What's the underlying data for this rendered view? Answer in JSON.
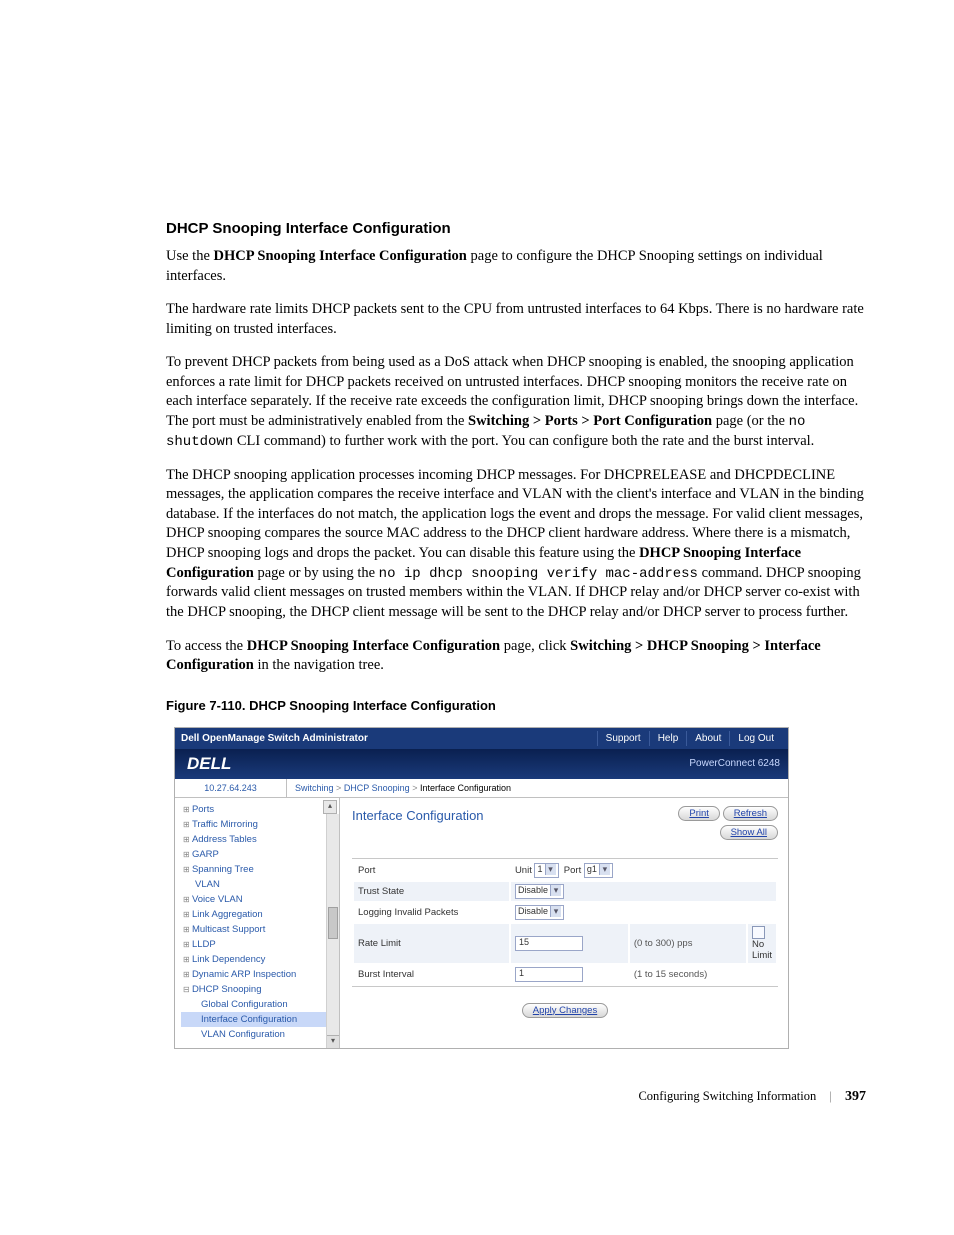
{
  "doc": {
    "heading": "DHCP Snooping Interface Configuration",
    "p1_a": "Use the ",
    "p1_b": "DHCP Snooping Interface Configuration",
    "p1_c": " page to configure the DHCP Snooping settings on individual interfaces.",
    "p2": "The hardware rate limits DHCP packets sent to the CPU from untrusted interfaces to 64 Kbps. There is no hardware rate limiting on trusted interfaces.",
    "p3_a": "To prevent DHCP packets from being used as a DoS attack when DHCP snooping is enabled, the snooping application enforces a rate limit for DHCP packets received on untrusted interfaces. DHCP snooping monitors the receive rate on each interface separately. If the receive rate exceeds the configuration limit, DHCP snooping brings down the interface. The port must be administratively enabled from the ",
    "p3_b": "Switching > Ports > Port Configuration",
    "p3_c": " page (or the ",
    "p3_cmd": "no shutdown",
    "p3_d": " CLI command) to further work with the port. You can configure both the rate and the burst interval.",
    "p4_a": "The DHCP snooping application processes incoming DHCP messages. For DHCPRELEASE and DHCPDECLINE messages, the application compares the receive interface and VLAN with the client's interface and VLAN in the binding database. If the interfaces do not match, the application logs the event and drops the message. For valid client messages, DHCP snooping compares the source MAC address to the DHCP client hardware address. Where there is a mismatch, DHCP snooping logs and drops the packet. You can disable this feature using the ",
    "p4_b": "DHCP Snooping Interface Configuration",
    "p4_c": " page or by using the ",
    "p4_cmd": "no ip dhcp snooping verify mac-address",
    "p4_d": " command. DHCP snooping forwards valid client messages on trusted members within the VLAN. If DHCP relay and/or DHCP server co-exist with the DHCP snooping, the DHCP client message will be sent to the DHCP relay and/or DHCP server to process further.",
    "p5_a": "To access the ",
    "p5_b": "DHCP Snooping Interface Configuration",
    "p5_c": " page, click ",
    "p5_d": "Switching > DHCP Snooping > Interface Configuration",
    "p5_e": " in the navigation tree.",
    "figcap": "Figure 7-110.    DHCP Snooping Interface Configuration",
    "footer_section": "Configuring Switching Information",
    "footer_pageno": "397"
  },
  "ss": {
    "topbar_title": "Dell OpenManage Switch Administrator",
    "topbar_links": [
      "Support",
      "Help",
      "About",
      "Log Out"
    ],
    "logo": "DELL",
    "product": "PowerConnect 6248",
    "ip": "10.27.64.243",
    "crumbs": [
      "Switching",
      "DHCP Snooping",
      "Interface Configuration"
    ],
    "nav": [
      {
        "label": "Ports",
        "cls": "lvl1"
      },
      {
        "label": "Traffic Mirroring",
        "cls": "lvl1"
      },
      {
        "label": "Address Tables",
        "cls": "lvl1"
      },
      {
        "label": "GARP",
        "cls": "lvl1"
      },
      {
        "label": "Spanning Tree",
        "cls": "lvl1"
      },
      {
        "label": "VLAN",
        "cls": "plain"
      },
      {
        "label": "Voice VLAN",
        "cls": "lvl1"
      },
      {
        "label": "Link Aggregation",
        "cls": "lvl1"
      },
      {
        "label": "Multicast Support",
        "cls": "lvl1"
      },
      {
        "label": "LLDP",
        "cls": "lvl1"
      },
      {
        "label": "Link Dependency",
        "cls": "lvl1"
      },
      {
        "label": "Dynamic ARP Inspection",
        "cls": "lvl1"
      },
      {
        "label": "DHCP Snooping",
        "cls": "lvl1-open"
      },
      {
        "label": "Global Configuration",
        "cls": "lvl2"
      },
      {
        "label": "Interface Configuration",
        "cls": "lvl2 selected"
      },
      {
        "label": "VLAN Configuration",
        "cls": "lvl2"
      }
    ],
    "panel_title": "Interface Configuration",
    "buttons": {
      "print": "Print",
      "refresh": "Refresh",
      "show_all": "Show All",
      "apply": "Apply Changes"
    },
    "form": {
      "port_label": "Port",
      "unit_label": "Unit",
      "unit_value": "1",
      "port_sel_label": "Port",
      "port_value": "g1",
      "trust_label": "Trust State",
      "trust_value": "Disable",
      "logging_label": "Logging Invalid Packets",
      "logging_value": "Disable",
      "rate_label": "Rate Limit",
      "rate_value": "15",
      "rate_hint": "(0 to 300) pps",
      "nolimit_label": "No Limit",
      "burst_label": "Burst Interval",
      "burst_value": "1",
      "burst_hint": "(1 to 15 seconds)"
    }
  }
}
